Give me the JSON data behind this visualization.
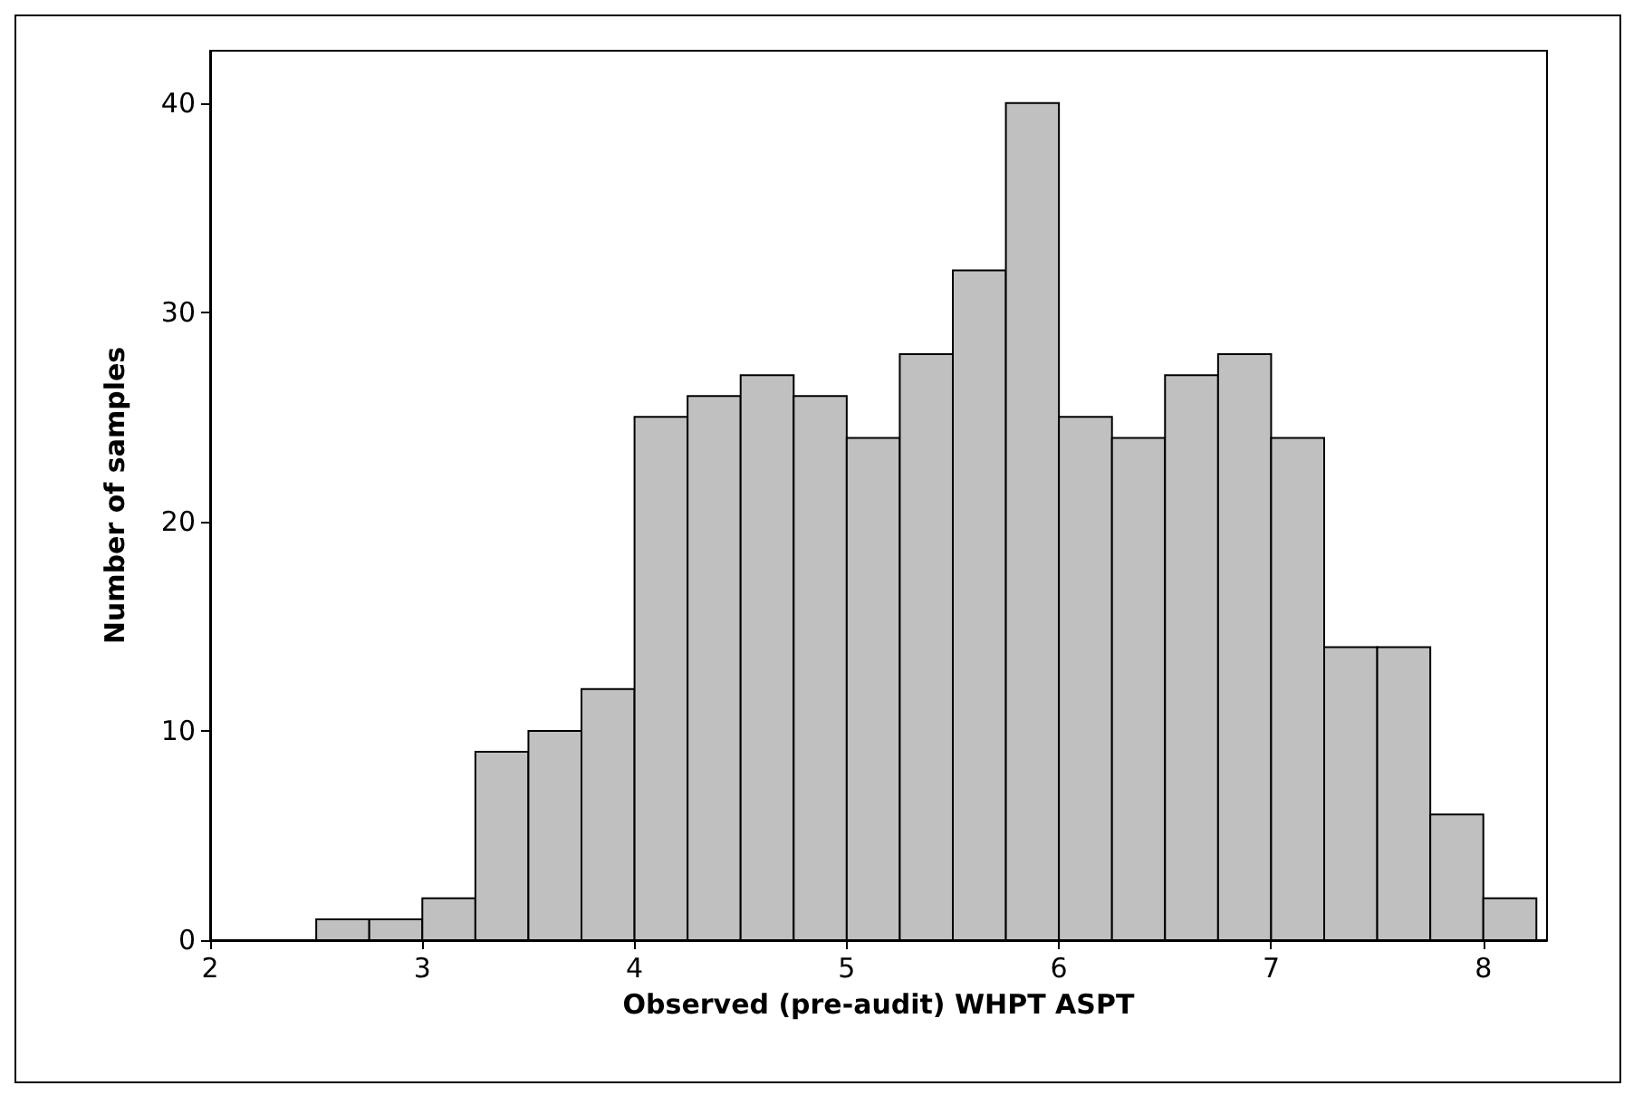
{
  "chart_data": {
    "type": "histogram",
    "xlabel": "Observed (pre-audit) WHPT ASPT",
    "ylabel": "Number of samples",
    "bins": [
      2.5,
      2.75,
      3,
      3.25,
      3.5,
      3.75,
      4,
      4.25,
      4.5,
      4.75,
      5,
      5.25,
      5.5,
      5.75,
      6,
      6.25,
      6.5,
      6.75,
      7,
      7.25,
      7.5,
      7.75,
      8,
      8.25
    ],
    "values": [
      1,
      1,
      2,
      9,
      10,
      12,
      25,
      26,
      27,
      26,
      24,
      28,
      32,
      40,
      25,
      24,
      27,
      28,
      24,
      14,
      14,
      6,
      2
    ],
    "color": "#c0c0c0",
    "xlim": [
      2,
      8.3
    ],
    "xticks": [
      2,
      3,
      4,
      5,
      6,
      7,
      8
    ],
    "ylim": [
      0,
      42.5
    ],
    "yticks": [
      0,
      10,
      20,
      30,
      40
    ],
    "grid": false
  }
}
